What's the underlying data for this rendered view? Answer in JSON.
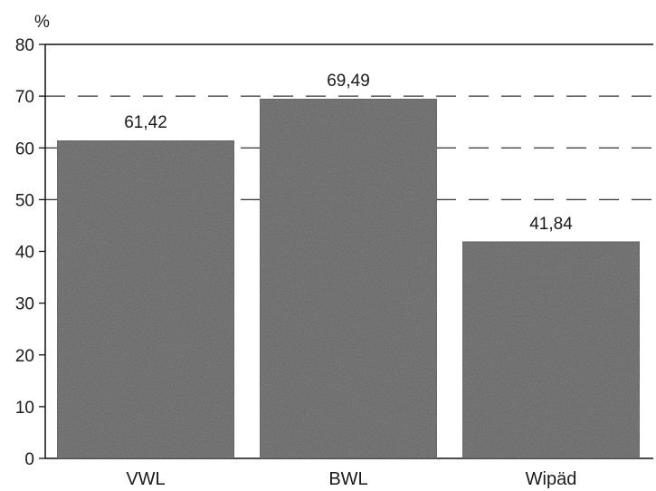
{
  "chart_data": {
    "type": "bar",
    "unit_label": "%",
    "categories": [
      "VWL",
      "BWL",
      "Wipäd"
    ],
    "values": [
      61.42,
      69.49,
      41.84
    ],
    "value_labels": [
      "61,42",
      "69,49",
      "41,84"
    ],
    "ylim": [
      0,
      80
    ],
    "yticks": [
      0,
      10,
      20,
      30,
      40,
      50,
      60,
      70,
      80
    ],
    "grid": "dashed horizontal lines at 50, 60, 70",
    "bar_color": "#5a5a5a",
    "text_color": "#1a1a1a"
  }
}
